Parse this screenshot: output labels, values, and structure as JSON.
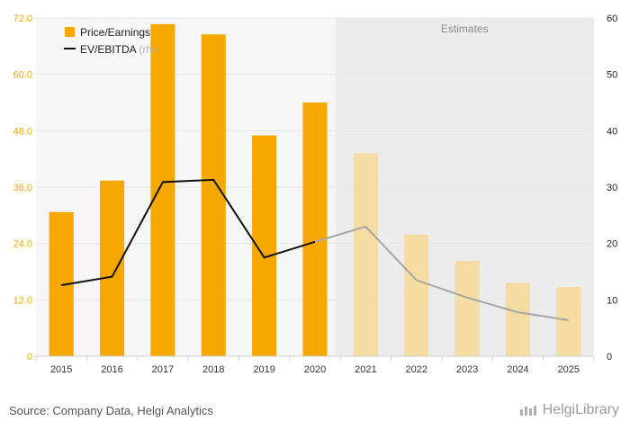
{
  "chart_data": {
    "type": "bar",
    "categories": [
      "2015",
      "2016",
      "2017",
      "2018",
      "2019",
      "2020",
      "2021",
      "2022",
      "2023",
      "2024",
      "2025"
    ],
    "series": [
      {
        "name": "Price/Earnings",
        "kind": "bar",
        "axis": "left",
        "values": [
          30.7,
          37.4,
          70.7,
          68.5,
          47.0,
          54.0,
          43.2,
          25.9,
          20.3,
          15.6,
          14.7
        ]
      },
      {
        "name": "EV/EBITDA",
        "legend_suffix": "(rhs",
        "kind": "line",
        "axis": "right",
        "values": [
          12.6,
          14.1,
          30.9,
          31.3,
          17.5,
          20.3,
          23.0,
          13.5,
          10.4,
          7.8,
          6.4
        ]
      }
    ],
    "left_axis": {
      "ticks": [
        "0",
        "12.0",
        "24.0",
        "36.0",
        "48.0",
        "60.0",
        "72.0"
      ],
      "range": [
        0,
        72
      ]
    },
    "right_axis": {
      "ticks": [
        "0",
        "10",
        "20",
        "30",
        "40",
        "50",
        "60"
      ],
      "range": [
        0,
        60
      ]
    },
    "estimates_label": "Estimates",
    "estimates_from_index": 6,
    "colors": {
      "bar_actual": "#f7a800",
      "bar_estimate": "#f4dca3",
      "line_actual": "#111111",
      "line_estimate": "#a6a6a6",
      "estimate_band": "#ececec",
      "left_band": "#f6f6f6",
      "left_axis_text": "#f2a900",
      "right_axis_text": "#222222"
    }
  },
  "footer": {
    "source": "Source: Company Data, Helgi Analytics",
    "brand": "HelgiLibrary"
  }
}
